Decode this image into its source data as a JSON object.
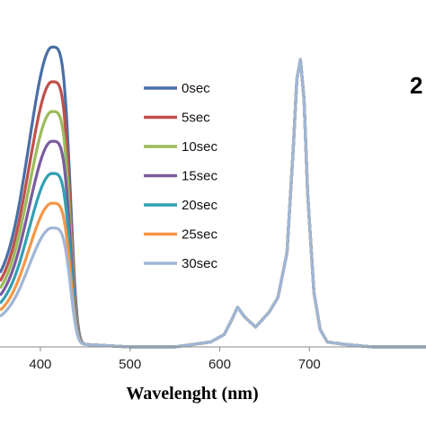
{
  "chart_data": {
    "type": "line",
    "title": "",
    "corner_label": "2",
    "xlabel": "Wavelenght (nm)",
    "ylabel": "",
    "xlim": [
      355,
      830
    ],
    "ylim": [
      0,
      1.4
    ],
    "x_ticks": [
      400,
      500,
      600,
      700
    ],
    "grid": false,
    "legend_position": "center",
    "colors": [
      "#4a6fa5",
      "#c0504d",
      "#9bbb59",
      "#7a5c9e",
      "#31a0b3",
      "#f79646",
      "#9fb6d6"
    ],
    "series": [
      {
        "name": "0sec",
        "soret_peak": 1.2
      },
      {
        "name": "5sec",
        "soret_peak": 1.06
      },
      {
        "name": "10sec",
        "soret_peak": 0.94
      },
      {
        "name": "15sec",
        "soret_peak": 0.82
      },
      {
        "name": "20sec",
        "soret_peak": 0.69
      },
      {
        "name": "25sec",
        "soret_peak": 0.57
      },
      {
        "name": "30sec",
        "soret_peak": 0.47
      }
    ],
    "common_band": {
      "x": [
        450,
        500,
        550,
        570,
        590,
        605,
        612,
        620,
        628,
        640,
        655,
        665,
        675,
        682,
        686,
        690,
        694,
        698,
        705,
        712,
        720,
        740,
        770,
        800,
        830
      ],
      "y": [
        0.01,
        0.0,
        0.0,
        0.01,
        0.02,
        0.05,
        0.1,
        0.16,
        0.12,
        0.08,
        0.14,
        0.2,
        0.38,
        0.8,
        1.08,
        1.16,
        1.0,
        0.62,
        0.22,
        0.07,
        0.02,
        0.01,
        0.0,
        0.0,
        0.0
      ]
    }
  }
}
